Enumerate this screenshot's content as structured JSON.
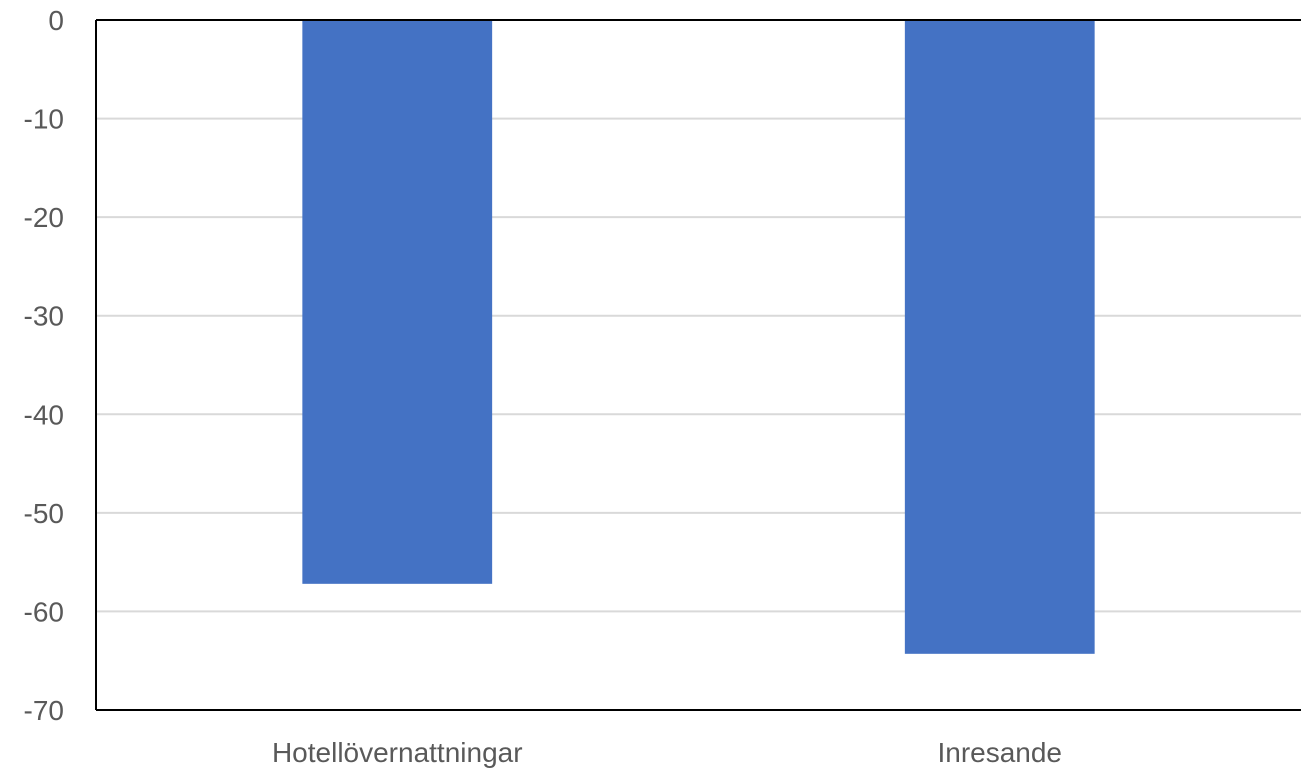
{
  "chart_data": {
    "type": "bar",
    "title": "",
    "xlabel": "",
    "ylabel": "",
    "categories": [
      "Hotellövernattningar",
      "Inresande"
    ],
    "series": [
      {
        "values": [
          -57.2,
          -64.3
        ]
      }
    ],
    "ylim": [
      -70,
      0
    ],
    "yticks": [
      0,
      -10,
      -20,
      -30,
      -40,
      -50,
      -60,
      -70
    ],
    "grid": true,
    "legend": "none",
    "colors": {
      "bar": "#4472C4",
      "grid": "#d9d9d9",
      "axis": "#000000",
      "tick_text": "#595959"
    }
  }
}
